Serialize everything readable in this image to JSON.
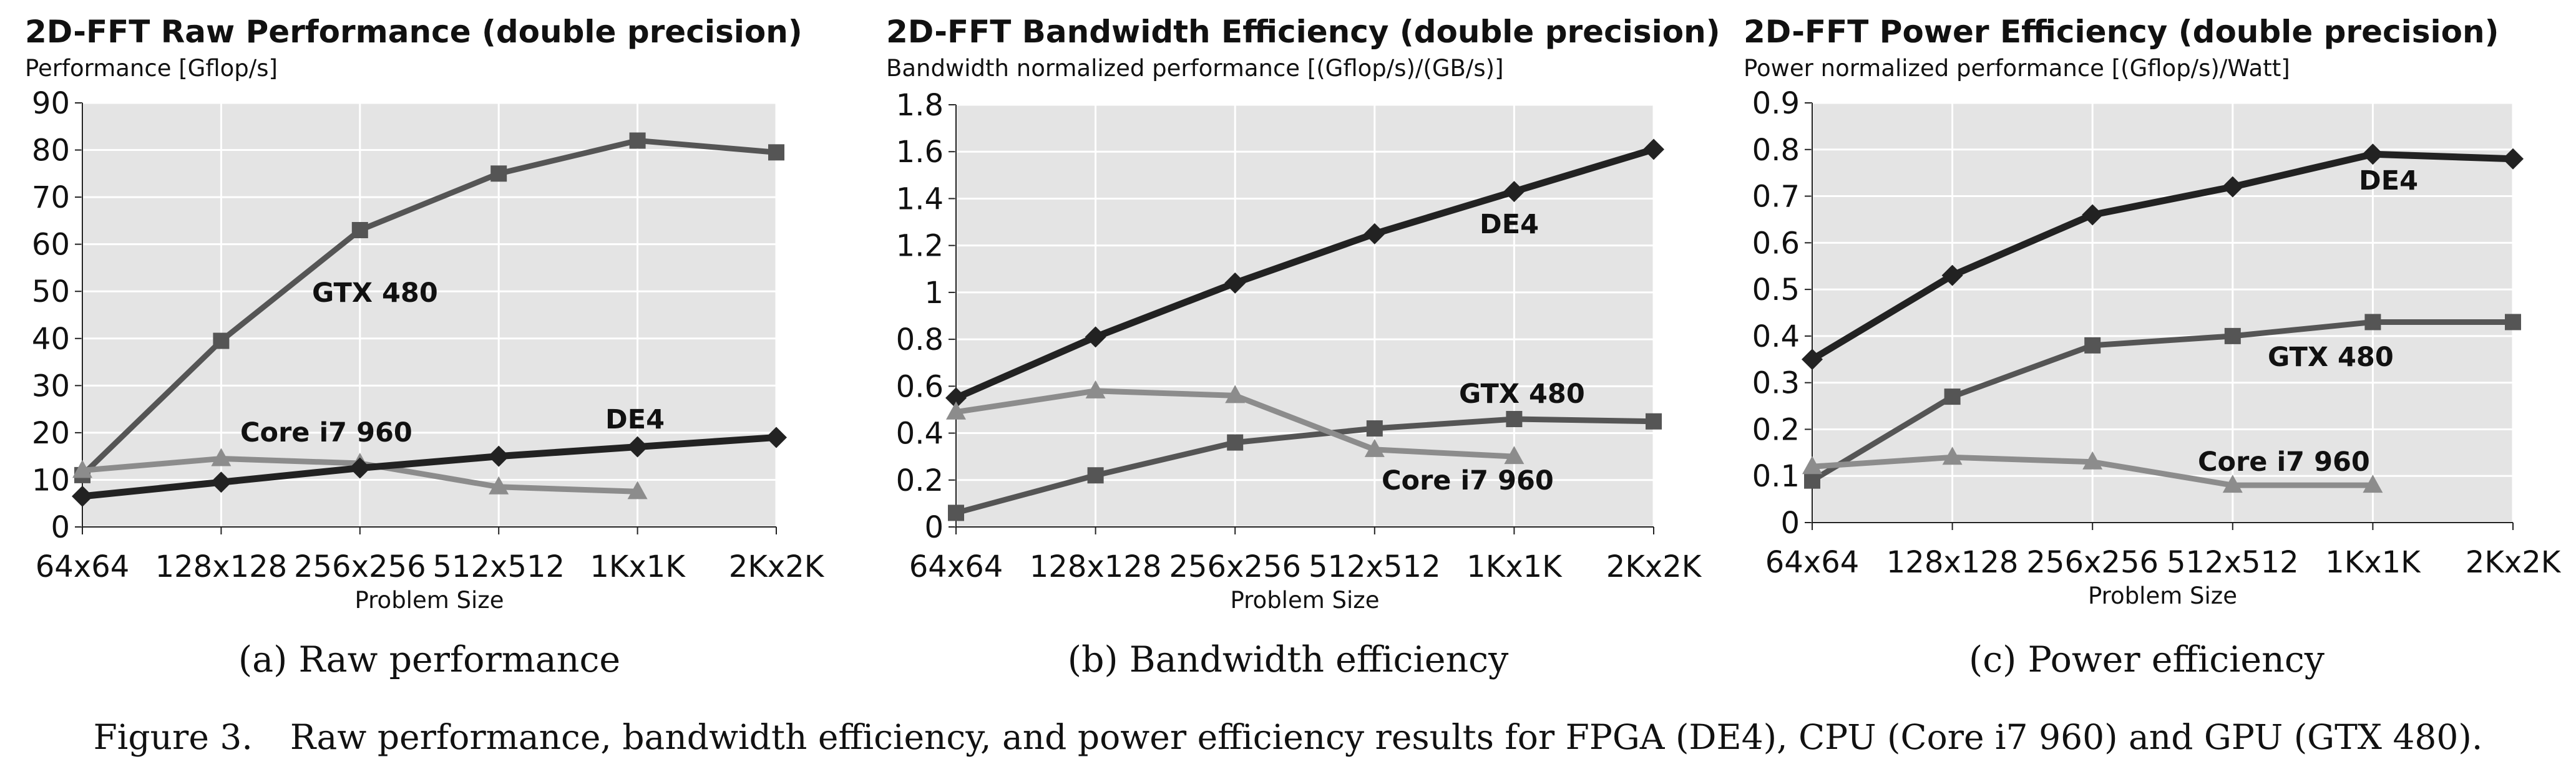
{
  "chart_data": [
    {
      "type": "line",
      "title": "2D-FFT Raw Performance (double precision)",
      "ylabel": "Performance [Gflop/s]",
      "xlabel": "Problem Size",
      "categories": [
        "64x64",
        "128x128",
        "256x256",
        "512x512",
        "1Kx1K",
        "2Kx2K"
      ],
      "ylim": [
        0,
        90
      ],
      "yticks": [
        0,
        10,
        20,
        30,
        40,
        50,
        60,
        70,
        80,
        90
      ],
      "grid": true,
      "series": [
        {
          "name": "GTX 480",
          "values": [
            11,
            39.5,
            63,
            75,
            82,
            79.5
          ],
          "color": "#555555",
          "marker": "square"
        },
        {
          "name": "Core i7 960",
          "values": [
            12,
            14.5,
            13.5,
            8.5,
            7.5,
            null
          ],
          "color": "#8c8c8c",
          "marker": "triangle"
        },
        {
          "name": "DE4",
          "values": [
            6.5,
            9.5,
            12.5,
            15,
            17,
            19
          ],
          "color": "#222222",
          "marker": "diamond"
        }
      ],
      "caption": "(a) Raw performance"
    },
    {
      "type": "line",
      "title": "2D-FFT Bandwidth Efficiency (double precision)",
      "ylabel": "Bandwidth normalized performance [(Gflop/s)/(GB/s)]",
      "xlabel": "Problem Size",
      "categories": [
        "64x64",
        "128x128",
        "256x256",
        "512x512",
        "1Kx1K",
        "2Kx2K"
      ],
      "ylim": [
        0,
        1.8
      ],
      "yticks": [
        "0",
        "0.2",
        "0.4",
        "0.6",
        "0.8",
        "1",
        "1.2",
        "1.4",
        "1.6",
        "1.8"
      ],
      "grid": true,
      "series": [
        {
          "name": "DE4",
          "values": [
            0.55,
            0.81,
            1.04,
            1.25,
            1.43,
            1.61
          ],
          "color": "#222222",
          "marker": "diamond"
        },
        {
          "name": "GTX 480",
          "values": [
            0.06,
            0.22,
            0.36,
            0.42,
            0.46,
            0.45
          ],
          "color": "#555555",
          "marker": "square"
        },
        {
          "name": "Core i7 960",
          "values": [
            0.49,
            0.58,
            0.56,
            0.33,
            0.3,
            null
          ],
          "color": "#8c8c8c",
          "marker": "triangle"
        }
      ],
      "caption": "(b) Bandwidth efficiency"
    },
    {
      "type": "line",
      "title": "2D-FFT Power Efficiency (double precision)",
      "ylabel": "Power normalized performance [(Gflop/s)/Watt]",
      "xlabel": "Problem Size",
      "categories": [
        "64x64",
        "128x128",
        "256x256",
        "512x512",
        "1Kx1K",
        "2Kx2K"
      ],
      "ylim": [
        0,
        0.9
      ],
      "yticks": [
        "0",
        "0.1",
        "0.2",
        "0.3",
        "0.4",
        "0.5",
        "0.6",
        "0.7",
        "0.8",
        "0.9"
      ],
      "grid": true,
      "series": [
        {
          "name": "DE4",
          "values": [
            0.35,
            0.53,
            0.66,
            0.72,
            0.79,
            0.78
          ],
          "color": "#222222",
          "marker": "diamond"
        },
        {
          "name": "GTX 480",
          "values": [
            0.09,
            0.27,
            0.38,
            0.4,
            0.43,
            0.43
          ],
          "color": "#555555",
          "marker": "square"
        },
        {
          "name": "Core i7 960",
          "values": [
            0.12,
            0.14,
            0.13,
            0.08,
            0.08,
            null
          ],
          "color": "#8c8c8c",
          "marker": "triangle"
        }
      ],
      "caption": "(c) Power efficiency"
    }
  ],
  "figure_caption": {
    "number": "Figure 3.",
    "text": "Raw performance, bandwidth efficiency, and power efficiency results for FPGA (DE4), CPU (Core i7 960) and GPU (GTX 480)."
  }
}
